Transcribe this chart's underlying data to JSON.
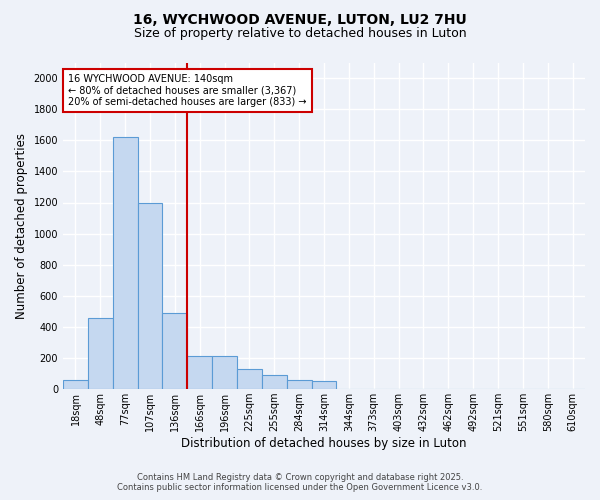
{
  "title_line1": "16, WYCHWOOD AVENUE, LUTON, LU2 7HU",
  "title_line2": "Size of property relative to detached houses in Luton",
  "xlabel": "Distribution of detached houses by size in Luton",
  "ylabel": "Number of detached properties",
  "categories": [
    "18sqm",
    "48sqm",
    "77sqm",
    "107sqm",
    "136sqm",
    "166sqm",
    "196sqm",
    "225sqm",
    "255sqm",
    "284sqm",
    "314sqm",
    "344sqm",
    "373sqm",
    "403sqm",
    "432sqm",
    "462sqm",
    "492sqm",
    "521sqm",
    "551sqm",
    "580sqm",
    "610sqm"
  ],
  "values": [
    60,
    460,
    1620,
    1200,
    490,
    215,
    215,
    130,
    90,
    60,
    50,
    0,
    0,
    0,
    0,
    0,
    0,
    0,
    0,
    0,
    0
  ],
  "bar_color": "#c5d8f0",
  "bar_edge_color": "#5b9bd5",
  "vline_color": "#cc0000",
  "vline_pos": 4.5,
  "annotation_text": "16 WYCHWOOD AVENUE: 140sqm\n← 80% of detached houses are smaller (3,367)\n20% of semi-detached houses are larger (833) →",
  "annotation_box_color": "#ffffff",
  "annotation_box_edge_color": "#cc0000",
  "ylim": [
    0,
    2100
  ],
  "yticks": [
    0,
    200,
    400,
    600,
    800,
    1000,
    1200,
    1400,
    1600,
    1800,
    2000
  ],
  "footer_line1": "Contains HM Land Registry data © Crown copyright and database right 2025.",
  "footer_line2": "Contains public sector information licensed under the Open Government Licence v3.0.",
  "background_color": "#eef2f9",
  "grid_color": "#ffffff",
  "title_fontsize": 10,
  "subtitle_fontsize": 9,
  "tick_fontsize": 7,
  "label_fontsize": 8.5,
  "annotation_fontsize": 7,
  "footer_fontsize": 6
}
